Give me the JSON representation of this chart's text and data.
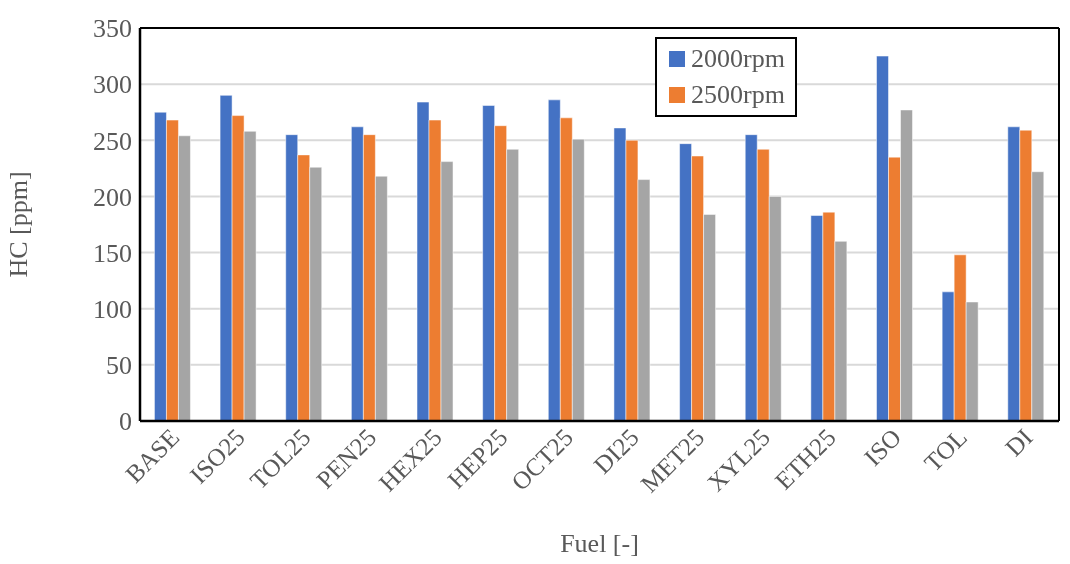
{
  "chart_data": {
    "type": "bar",
    "xlabel": "Fuel [-]",
    "ylabel": "HC [ppm]",
    "categories": [
      "BASE",
      "ISO25",
      "TOL25",
      "PEN25",
      "HEX25",
      "HEP25",
      "OCT25",
      "DI25",
      "MET25",
      "XYL25",
      "ETH25",
      "ISO",
      "TOL",
      "DI"
    ],
    "series": [
      {
        "name": "2000rpm",
        "color": "#4472c4",
        "values": [
          275,
          290,
          255,
          262,
          284,
          281,
          286,
          261,
          247,
          255,
          183,
          325,
          115,
          262
        ]
      },
      {
        "name": "2500rpm",
        "color": "#ed7d31",
        "values": [
          268,
          272,
          237,
          255,
          268,
          263,
          270,
          250,
          236,
          242,
          186,
          235,
          148,
          259
        ]
      },
      {
        "color": "#a5a5a5",
        "values": [
          254,
          258,
          226,
          218,
          231,
          242,
          251,
          215,
          184,
          200,
          160,
          277,
          106,
          222
        ]
      }
    ],
    "ylim": [
      0,
      350
    ],
    "yticks": [
      0,
      50,
      100,
      150,
      200,
      250,
      300,
      350
    ],
    "grid": "y",
    "legend": "top right"
  }
}
